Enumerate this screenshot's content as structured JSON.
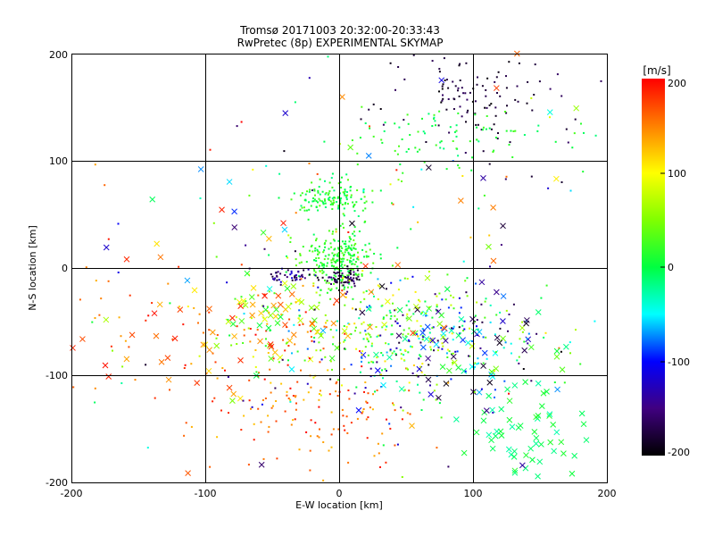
{
  "chart_data": {
    "type": "scatter",
    "title": "Tromsø 20171003 20:32:00-20:33:43",
    "subtitle": "RwPretec (8p) EXPERIMENTAL SKYMAP",
    "xlabel": "E-W location [km]",
    "ylabel": "N-S location [km]",
    "xlim": [
      -200,
      200
    ],
    "ylim": [
      -200,
      200
    ],
    "x_ticks": [
      "-200",
      "-100",
      "0",
      "100",
      "200"
    ],
    "y_ticks": [
      "-200",
      "-100",
      "0",
      "100",
      "200"
    ],
    "grid": true,
    "colorbar": {
      "label": "[m/s]",
      "range": [
        -200,
        200
      ],
      "ticks": [
        "200",
        "100",
        "0",
        "-100",
        "-200"
      ]
    },
    "clusters": [
      {
        "cx": 0,
        "cy": 8,
        "sx": 14,
        "sy": 14,
        "n": 260,
        "vel": [
          -10,
          40
        ],
        "marker": "dot"
      },
      {
        "cx": -5,
        "cy": 65,
        "sx": 14,
        "sy": 9,
        "n": 140,
        "vel": [
          -20,
          40
        ],
        "marker": "dot"
      },
      {
        "cx": 5,
        "cy": -10,
        "sx": 7,
        "sy": 4,
        "n": 60,
        "vel": [
          -200,
          -140
        ],
        "marker": "dot"
      },
      {
        "cx": -35,
        "cy": -8,
        "sx": 10,
        "sy": 3,
        "n": 45,
        "vel": [
          -190,
          -110
        ],
        "marker": "dot"
      },
      {
        "cx": 100,
        "cy": 160,
        "sx": 35,
        "sy": 22,
        "n": 110,
        "vel": [
          -200,
          -160
        ],
        "marker": "dot"
      },
      {
        "cx": 75,
        "cy": 120,
        "sx": 45,
        "sy": 15,
        "n": 90,
        "vel": [
          -20,
          30
        ],
        "marker": "dot"
      },
      {
        "cx": 80,
        "cy": -70,
        "sx": 45,
        "sy": 25,
        "n": 280,
        "vel": [
          -200,
          80
        ],
        "marker": "mix"
      },
      {
        "cx": -45,
        "cy": -55,
        "sx": 30,
        "sy": 25,
        "n": 160,
        "vel": [
          0,
          200
        ],
        "marker": "mix"
      },
      {
        "cx": -20,
        "cy": -130,
        "sx": 45,
        "sy": 30,
        "n": 140,
        "vel": [
          120,
          200
        ],
        "marker": "dot"
      },
      {
        "cx": 150,
        "cy": -150,
        "sx": 25,
        "sy": 20,
        "n": 60,
        "vel": [
          -30,
          20
        ],
        "marker": "cross"
      },
      {
        "cx": -150,
        "cy": -50,
        "sx": 40,
        "sy": 40,
        "n": 60,
        "vel": [
          130,
          200
        ],
        "marker": "mix"
      },
      {
        "cx": 40,
        "cy": -60,
        "sx": 30,
        "sy": 30,
        "n": 160,
        "vel": [
          -30,
          120
        ],
        "marker": "dot"
      },
      {
        "cx": 0,
        "cy": 0,
        "sx": 100,
        "sy": 100,
        "n": 200,
        "vel": [
          -200,
          200
        ],
        "marker": "mix"
      }
    ]
  }
}
